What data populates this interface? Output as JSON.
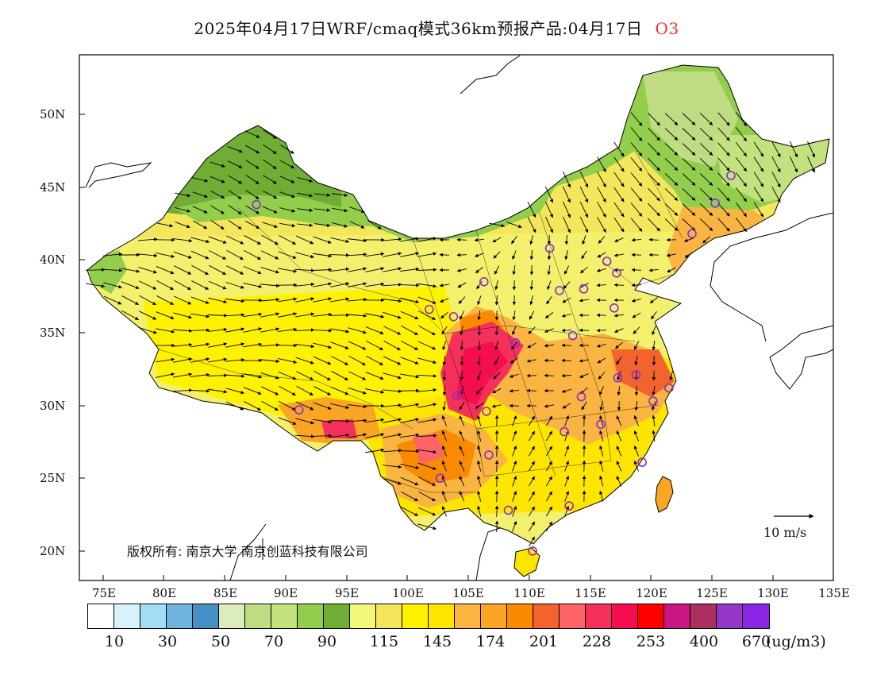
{
  "title": {
    "text": "2025年04月17日WRF/cmaq模式36km预报产品:04月17日",
    "pollutant": "O3"
  },
  "map": {
    "lat_labels": [
      "50N",
      "45N",
      "40N",
      "35N",
      "30N",
      "25N",
      "20N"
    ],
    "lon_labels": [
      "75E",
      "80E",
      "85E",
      "90E",
      "95E",
      "100E",
      "105E",
      "110E",
      "115E",
      "120E",
      "125E",
      "130E",
      "135E"
    ],
    "copyright": "版权所有: 南京大学 南京创蓝科技有限公司",
    "scale_label": "10 m/s",
    "stations": [
      {
        "lon": 87.6,
        "lat": 43.8
      },
      {
        "lon": 91.1,
        "lat": 29.7
      },
      {
        "lon": 101.8,
        "lat": 36.6
      },
      {
        "lon": 103.8,
        "lat": 36.1
      },
      {
        "lon": 106.3,
        "lat": 38.5
      },
      {
        "lon": 111.7,
        "lat": 40.8
      },
      {
        "lon": 112.5,
        "lat": 37.9
      },
      {
        "lon": 114.5,
        "lat": 38.0
      },
      {
        "lon": 116.4,
        "lat": 39.9
      },
      {
        "lon": 117.2,
        "lat": 39.1
      },
      {
        "lon": 117.0,
        "lat": 36.7
      },
      {
        "lon": 113.6,
        "lat": 34.8
      },
      {
        "lon": 108.9,
        "lat": 34.3
      },
      {
        "lon": 104.1,
        "lat": 30.7
      },
      {
        "lon": 106.5,
        "lat": 29.6
      },
      {
        "lon": 106.7,
        "lat": 26.6
      },
      {
        "lon": 102.7,
        "lat": 25.0
      },
      {
        "lon": 108.3,
        "lat": 22.8
      },
      {
        "lon": 113.3,
        "lat": 23.1
      },
      {
        "lon": 110.3,
        "lat": 20.0
      },
      {
        "lon": 114.3,
        "lat": 30.6
      },
      {
        "lon": 112.9,
        "lat": 28.2
      },
      {
        "lon": 115.9,
        "lat": 28.7
      },
      {
        "lon": 117.3,
        "lat": 31.9
      },
      {
        "lon": 118.8,
        "lat": 32.1
      },
      {
        "lon": 120.2,
        "lat": 30.3
      },
      {
        "lon": 121.5,
        "lat": 31.2
      },
      {
        "lon": 119.3,
        "lat": 26.1
      },
      {
        "lon": 123.4,
        "lat": 41.8
      },
      {
        "lon": 125.3,
        "lat": 43.9
      },
      {
        "lon": 126.6,
        "lat": 45.8
      }
    ]
  },
  "colorbar": {
    "colors": [
      "#ffffff",
      "#d8f1fb",
      "#a2dcf5",
      "#6eb4e0",
      "#4590c4",
      "#dcecbb",
      "#bfdc82",
      "#c3e27d",
      "#93cd4c",
      "#6fad35",
      "#f2f779",
      "#f4e65a",
      "#fff200",
      "#fde500",
      "#f9b442",
      "#faa524",
      "#fa8a00",
      "#f2632d",
      "#fe6467",
      "#f5305a",
      "#f50e4e",
      "#fe0000",
      "#c91680",
      "#aa315f",
      "#9436c6",
      "#8c25e3"
    ],
    "ticks": [
      "10",
      "30",
      "50",
      "70",
      "90",
      "115",
      "145",
      "174",
      "201",
      "228",
      "253",
      "400",
      "670"
    ],
    "unit": "(ug/m3)"
  }
}
